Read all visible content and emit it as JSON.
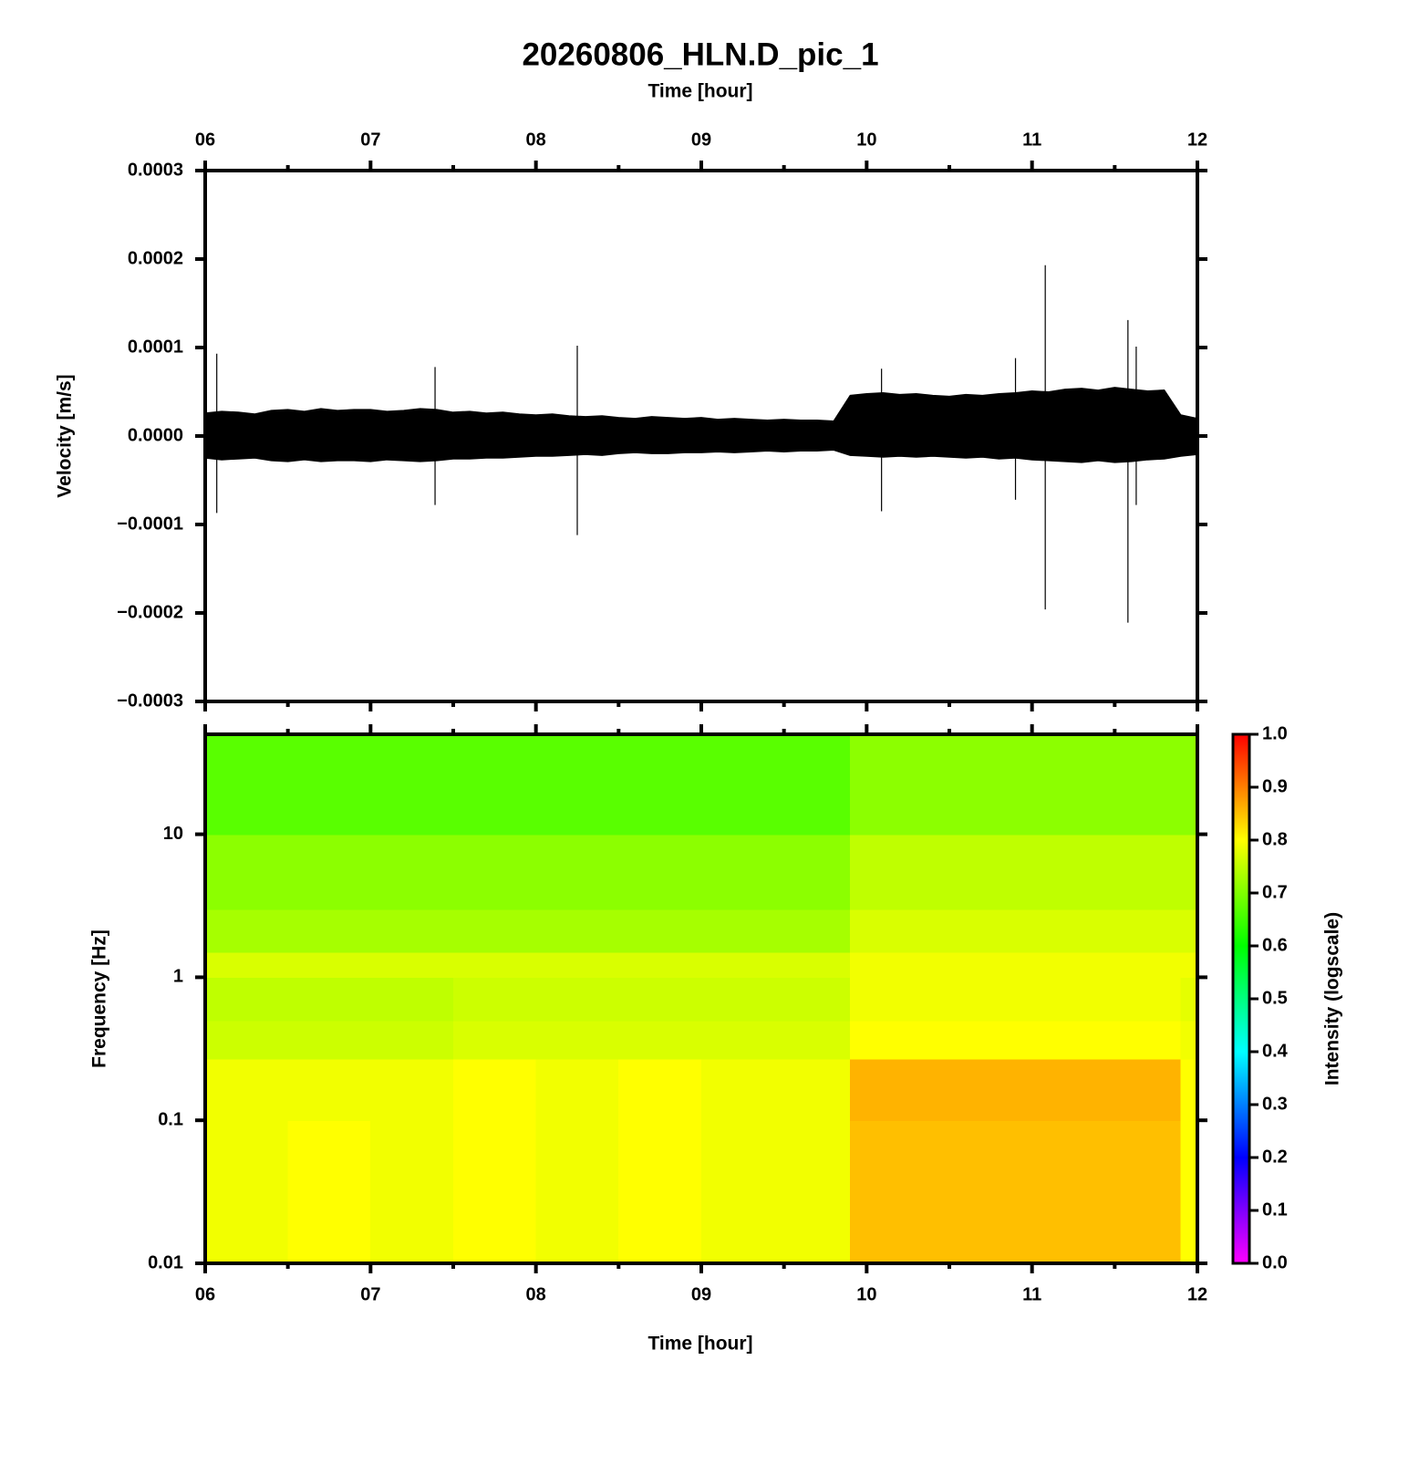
{
  "chart_data": [
    {
      "type": "waveform",
      "title": "20260806_HLN.D_pic_1",
      "xlabel": "Time [hour]",
      "ylabel": "Velocity [m/s]",
      "xaxis_position": "top",
      "xlim": [
        6,
        12
      ],
      "xticks": [
        {
          "value": 6,
          "label": "06"
        },
        {
          "value": 7,
          "label": "07"
        },
        {
          "value": 8,
          "label": "08"
        },
        {
          "value": 9,
          "label": "09"
        },
        {
          "value": 10,
          "label": "10"
        },
        {
          "value": 11,
          "label": "11"
        },
        {
          "value": 12,
          "label": "12"
        }
      ],
      "xminorticks": [
        6.5,
        7.5,
        8.5,
        9.5,
        10.5,
        11.5
      ],
      "yscale": "linear",
      "ylim": [
        -0.0003,
        0.0003
      ],
      "yticks": [
        {
          "value": -0.0003,
          "label": "−0.0003"
        },
        {
          "value": -0.0002,
          "label": "−0.0002"
        },
        {
          "value": -0.0001,
          "label": "−0.0001"
        },
        {
          "value": 0,
          "label": "0.0000"
        },
        0.0001,
        0.0002,
        0.0003
      ],
      "color": "#000000",
      "x": [
        6.0,
        6.1,
        6.2,
        6.3,
        6.4,
        6.5,
        6.6,
        6.7,
        6.8,
        6.9,
        7.0,
        7.1,
        7.2,
        7.3,
        7.4,
        7.5,
        7.6,
        7.7,
        7.8,
        7.9,
        8.0,
        8.1,
        8.2,
        8.3,
        8.4,
        8.5,
        8.6,
        8.7,
        8.8,
        8.9,
        9.0,
        9.1,
        9.2,
        9.3,
        9.4,
        9.5,
        9.6,
        9.7,
        9.8,
        9.9,
        10.0,
        10.1,
        10.2,
        10.3,
        10.4,
        10.5,
        10.6,
        10.7,
        10.8,
        10.9,
        11.0,
        11.1,
        11.2,
        11.3,
        11.4,
        11.5,
        11.6,
        11.7,
        11.8,
        11.9,
        12.0
      ],
      "upper": [
        2.6e-05,
        2.8e-05,
        2.7e-05,
        2.5e-05,
        2.9e-05,
        3e-05,
        2.8e-05,
        3.1e-05,
        2.9e-05,
        3e-05,
        3e-05,
        2.8e-05,
        2.9e-05,
        3.1e-05,
        3e-05,
        2.7e-05,
        2.8e-05,
        2.6e-05,
        2.7e-05,
        2.5e-05,
        2.4e-05,
        2.5e-05,
        2.3e-05,
        2.2e-05,
        2.3e-05,
        2.1e-05,
        2e-05,
        2.2e-05,
        2.1e-05,
        2e-05,
        2.1e-05,
        1.9e-05,
        2e-05,
        1.9e-05,
        1.8e-05,
        1.9e-05,
        1.8e-05,
        1.8e-05,
        1.7e-05,
        4.6e-05,
        4.8e-05,
        4.9e-05,
        4.7e-05,
        4.8e-05,
        4.6e-05,
        4.5e-05,
        4.7e-05,
        4.6e-05,
        4.8e-05,
        4.9e-05,
        5.1e-05,
        5e-05,
        5.3e-05,
        5.4e-05,
        5.2e-05,
        5.5e-05,
        5.3e-05,
        5.1e-05,
        5.2e-05,
        2.4e-05,
        2e-05
      ],
      "lower": [
        -2.5e-05,
        -2.7e-05,
        -2.6e-05,
        -2.5e-05,
        -2.8e-05,
        -2.9e-05,
        -2.7e-05,
        -2.9e-05,
        -2.8e-05,
        -2.8e-05,
        -2.9e-05,
        -2.7e-05,
        -2.8e-05,
        -2.9e-05,
        -2.8e-05,
        -2.6e-05,
        -2.6e-05,
        -2.5e-05,
        -2.5e-05,
        -2.4e-05,
        -2.3e-05,
        -2.3e-05,
        -2.2e-05,
        -2.1e-05,
        -2.2e-05,
        -2e-05,
        -1.9e-05,
        -2e-05,
        -2e-05,
        -1.9e-05,
        -1.9e-05,
        -1.8e-05,
        -1.9e-05,
        -1.8e-05,
        -1.7e-05,
        -1.8e-05,
        -1.7e-05,
        -1.7e-05,
        -1.6e-05,
        -2.2e-05,
        -2.3e-05,
        -2.4e-05,
        -2.3e-05,
        -2.4e-05,
        -2.3e-05,
        -2.4e-05,
        -2.5e-05,
        -2.4e-05,
        -2.6e-05,
        -2.5e-05,
        -2.7e-05,
        -2.8e-05,
        -2.9e-05,
        -3e-05,
        -2.8e-05,
        -3e-05,
        -2.9e-05,
        -2.7e-05,
        -2.6e-05,
        -2.3e-05,
        -2.1e-05
      ],
      "spikes": {
        "x": [
          6.07,
          7.39,
          8.25,
          10.09,
          10.9,
          11.08,
          11.58,
          11.63
        ],
        "max": [
          9.3e-05,
          7.8e-05,
          0.000102,
          7.6e-05,
          8.8e-05,
          0.000193,
          0.000131,
          0.000101
        ],
        "min": [
          -8.7e-05,
          -7.8e-05,
          -0.000112,
          -8.5e-05,
          -7.2e-05,
          -0.000196,
          -0.000211,
          -7.8e-05
        ]
      }
    },
    {
      "type": "spectrogram",
      "xlabel": "Time [hour]",
      "ylabel": "Frequency [Hz]",
      "xaxis_position": "bottom",
      "xlim": [
        6,
        12
      ],
      "xticks": [
        {
          "value": 6,
          "label": "06"
        },
        {
          "value": 7,
          "label": "07"
        },
        {
          "value": 8,
          "label": "08"
        },
        {
          "value": 9,
          "label": "09"
        },
        {
          "value": 10,
          "label": "10"
        },
        {
          "value": 11,
          "label": "11"
        },
        {
          "value": 12,
          "label": "12"
        }
      ],
      "xminorticks": [
        6.5,
        7.5,
        8.5,
        9.5,
        10.5,
        11.5
      ],
      "yscale": "log",
      "ylim": [
        0.01,
        50
      ],
      "yticks": [
        0.01,
        0.1,
        1,
        10
      ],
      "time_bins": [
        6,
        6.5,
        7,
        7.5,
        8,
        8.5,
        9,
        9.5,
        9.9,
        10.5,
        11,
        11.5,
        11.9,
        12
      ],
      "freq_bins": [
        0.01,
        0.1,
        0.27,
        0.5,
        1,
        1.5,
        3,
        10,
        50
      ],
      "values": [
        [
          0.79,
          0.8,
          0.79,
          0.8,
          0.79,
          0.8,
          0.79,
          0.79,
          0.85,
          0.85,
          0.85,
          0.85,
          0.8
        ],
        [
          0.79,
          0.79,
          0.79,
          0.8,
          0.79,
          0.8,
          0.79,
          0.79,
          0.86,
          0.86,
          0.86,
          0.86,
          0.8
        ],
        [
          0.76,
          0.76,
          0.76,
          0.77,
          0.77,
          0.77,
          0.77,
          0.77,
          0.8,
          0.8,
          0.8,
          0.8,
          0.79
        ],
        [
          0.75,
          0.75,
          0.75,
          0.76,
          0.76,
          0.76,
          0.76,
          0.76,
          0.79,
          0.79,
          0.79,
          0.79,
          0.78
        ],
        [
          0.77,
          0.77,
          0.77,
          0.77,
          0.77,
          0.77,
          0.77,
          0.77,
          0.79,
          0.79,
          0.79,
          0.79,
          0.79
        ],
        [
          0.73,
          0.73,
          0.73,
          0.73,
          0.73,
          0.73,
          0.73,
          0.73,
          0.77,
          0.77,
          0.77,
          0.77,
          0.77
        ],
        [
          0.71,
          0.71,
          0.71,
          0.71,
          0.71,
          0.71,
          0.71,
          0.71,
          0.75,
          0.75,
          0.75,
          0.75,
          0.75
        ],
        [
          0.67,
          0.67,
          0.67,
          0.67,
          0.67,
          0.67,
          0.67,
          0.67,
          0.71,
          0.71,
          0.71,
          0.71,
          0.71
        ]
      ],
      "colorbar": {
        "label": "Intensity (logscale)",
        "lim": [
          0,
          1
        ],
        "ticks": [
          {
            "value": 0,
            "label": "0.0"
          },
          {
            "value": 0.1,
            "label": "0.1"
          },
          {
            "value": 0.2,
            "label": "0.2"
          },
          {
            "value": 0.3,
            "label": "0.3"
          },
          {
            "value": 0.4,
            "label": "0.4"
          },
          {
            "value": 0.5,
            "label": "0.5"
          },
          {
            "value": 0.6,
            "label": "0.6"
          },
          {
            "value": 0.7,
            "label": "0.7"
          },
          {
            "value": 0.8,
            "label": "0.8"
          },
          {
            "value": 0.9,
            "label": "0.9"
          },
          {
            "value": 1,
            "label": "1.0"
          }
        ],
        "colormap": [
          {
            "value": 0,
            "color": "#ff00ff"
          },
          {
            "value": 0.2,
            "color": "#0000ff"
          },
          {
            "value": 0.4,
            "color": "#00ffff"
          },
          {
            "value": 0.6,
            "color": "#00ff00"
          },
          {
            "value": 0.8,
            "color": "#ffff00"
          },
          {
            "value": 1,
            "color": "#ff0000"
          }
        ]
      }
    }
  ]
}
